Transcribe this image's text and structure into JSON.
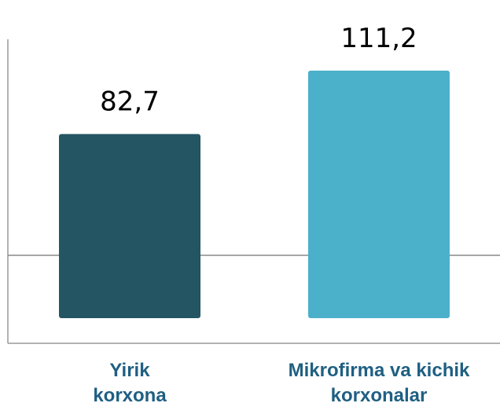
{
  "chart_data": {
    "type": "bar",
    "categories": [
      "Yirik korxona",
      "Mikrofirma va kichik korxonalar"
    ],
    "values": [
      82.7,
      111.2
    ],
    "value_labels": [
      "82,7",
      "111,2"
    ],
    "colors": [
      "#245563",
      "#4bb0ca"
    ],
    "ylim": [
      0,
      120
    ]
  }
}
